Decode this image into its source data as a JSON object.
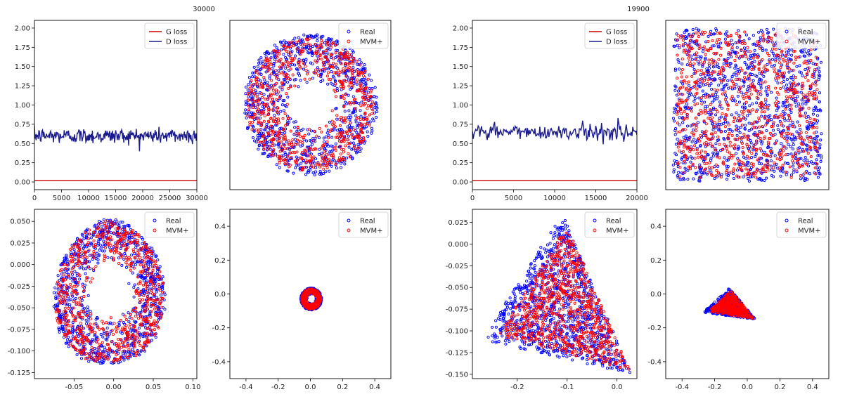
{
  "figure": {
    "colors": {
      "real": "#0000ff",
      "mvm": "#ff0000",
      "g_loss": "#cc0000",
      "d_loss": "#1a1a8c",
      "axes": "#000000"
    }
  },
  "chart_data": [
    {
      "id": "left-top-loss",
      "type": "line",
      "figure_title": "30000",
      "xlim": [
        0,
        30000
      ],
      "ylim": [
        -0.1,
        2.1
      ],
      "xticks": [
        0,
        5000,
        10000,
        15000,
        20000,
        25000,
        30000
      ],
      "yticks": [
        0.0,
        0.25,
        0.5,
        0.75,
        1.0,
        1.25,
        1.5,
        1.75,
        2.0
      ],
      "legend_position": "top-right",
      "show_xticks": true,
      "show_yticks": true,
      "series": [
        {
          "name": "G loss",
          "color": "#cc0000",
          "x": [
            0,
            30000
          ],
          "y": [
            0.02,
            0.02
          ]
        },
        {
          "name": "D loss",
          "color": "#1a1a8c",
          "mean": 0.6,
          "amplitude": 0.05,
          "points": 300
        }
      ]
    },
    {
      "id": "left-top-scatter",
      "type": "scatter",
      "xlim": [
        -1.2,
        1.2
      ],
      "ylim": [
        -1.2,
        1.2
      ],
      "show_xticks": false,
      "show_yticks": false,
      "legend_position": "top-right",
      "series": [
        {
          "name": "Real",
          "color": "#0000ff",
          "shape": "annulus",
          "cx": 0.0,
          "cy": 0.0,
          "r_inner": 0.3,
          "r_outer": 1.0,
          "count": 900
        },
        {
          "name": "MVM+",
          "color": "#ff0000",
          "shape": "annulus",
          "cx": 0.0,
          "cy": 0.0,
          "r_inner": 0.32,
          "r_outer": 0.95,
          "count": 700
        }
      ]
    },
    {
      "id": "left-bottom-scatter",
      "type": "scatter",
      "xlim": [
        -0.1,
        0.105
      ],
      "ylim": [
        -0.132,
        0.064
      ],
      "xticks": [
        -0.05,
        0.0,
        0.05,
        0.1
      ],
      "yticks": [
        0.05,
        0.025,
        0.0,
        -0.025,
        -0.05,
        -0.075,
        -0.1,
        -0.125
      ],
      "legend_position": "top-right",
      "show_xticks": true,
      "show_yticks": true,
      "series": [
        {
          "name": "Real",
          "color": "#0000ff",
          "shape": "warped-annulus",
          "cx": -0.005,
          "cy": -0.03,
          "sx": 0.07,
          "sy": 0.085,
          "r_inner": 0.35,
          "skew": 0.5,
          "count": 900
        },
        {
          "name": "MVM+",
          "color": "#ff0000",
          "shape": "warped-annulus",
          "cx": -0.005,
          "cy": -0.03,
          "sx": 0.068,
          "sy": 0.083,
          "r_inner": 0.37,
          "skew": 0.5,
          "count": 700
        }
      ]
    },
    {
      "id": "left-bottom-zoomed",
      "type": "scatter",
      "xlim": [
        -0.5,
        0.5
      ],
      "ylim": [
        -0.5,
        0.5
      ],
      "xticks": [
        -0.4,
        -0.2,
        0.0,
        0.2,
        0.4
      ],
      "yticks": [
        0.4,
        0.2,
        0.0,
        -0.2,
        -0.4
      ],
      "legend_position": "top-right",
      "show_xticks": true,
      "show_yticks": true,
      "series": [
        {
          "name": "Real",
          "color": "#0000ff",
          "shape": "annulus",
          "cx": 0.005,
          "cy": -0.03,
          "r_inner": 0.025,
          "r_outer": 0.065,
          "count": 500
        },
        {
          "name": "MVM+",
          "color": "#ff0000",
          "shape": "annulus",
          "cx": 0.005,
          "cy": -0.03,
          "r_inner": 0.027,
          "r_outer": 0.06,
          "count": 450
        }
      ]
    },
    {
      "id": "right-top-loss",
      "type": "line",
      "figure_title": "19900",
      "xlim": [
        0,
        20000
      ],
      "ylim": [
        -0.1,
        2.1
      ],
      "xticks": [
        0,
        5000,
        10000,
        15000,
        20000
      ],
      "yticks": [
        0.0,
        0.25,
        0.5,
        0.75,
        1.0,
        1.25,
        1.5,
        1.75,
        2.0
      ],
      "legend_position": "top-right",
      "show_xticks": true,
      "show_yticks": true,
      "series": [
        {
          "name": "G loss",
          "color": "#cc0000",
          "x": [
            0,
            20000
          ],
          "y": [
            0.02,
            0.02
          ]
        },
        {
          "name": "D loss",
          "color": "#1a1a8c",
          "mean": 0.65,
          "amplitude": 0.05,
          "points": 200
        }
      ]
    },
    {
      "id": "right-top-scatter",
      "type": "scatter",
      "xlim": [
        -1.1,
        1.1
      ],
      "ylim": [
        -1.1,
        1.1
      ],
      "show_xticks": false,
      "show_yticks": false,
      "legend_position": "top-right",
      "series": [
        {
          "name": "Real",
          "color": "#0000ff",
          "shape": "square",
          "x0": -1.0,
          "x1": 1.0,
          "y0": -1.0,
          "y1": 1.0,
          "count": 1100
        },
        {
          "name": "MVM+",
          "color": "#ff0000",
          "shape": "square",
          "x0": -0.95,
          "x1": 0.95,
          "y0": -0.95,
          "y1": 0.95,
          "count": 800
        }
      ]
    },
    {
      "id": "right-bottom-scatter",
      "type": "scatter",
      "xlim": [
        -0.29,
        0.04
      ],
      "ylim": [
        -0.155,
        0.04
      ],
      "xticks": [
        -0.2,
        -0.1,
        0.0
      ],
      "yticks": [
        0.025,
        0.0,
        -0.025,
        -0.05,
        -0.075,
        -0.1,
        -0.125,
        -0.15
      ],
      "legend_position": "top-right",
      "show_xticks": true,
      "show_yticks": true,
      "series": [
        {
          "name": "Real",
          "color": "#0000ff",
          "shape": "triangle",
          "vertices": [
            [
              -0.27,
              -0.11
            ],
            [
              -0.11,
              0.035
            ],
            [
              0.03,
              -0.15
            ]
          ],
          "count": 1000
        },
        {
          "name": "MVM+",
          "color": "#ff0000",
          "shape": "triangle",
          "vertices": [
            [
              -0.24,
              -0.105
            ],
            [
              -0.1,
              0.02
            ],
            [
              0.025,
              -0.145
            ]
          ],
          "count": 800
        }
      ]
    },
    {
      "id": "right-bottom-zoomed",
      "type": "scatter",
      "xlim": [
        -0.5,
        0.5
      ],
      "ylim": [
        -0.5,
        0.5
      ],
      "xticks": [
        -0.4,
        -0.2,
        0.0,
        0.2,
        0.4
      ],
      "yticks": [
        0.4,
        0.2,
        0.0,
        -0.2,
        -0.4
      ],
      "legend_position": "top-right",
      "show_xticks": true,
      "show_yticks": true,
      "series": [
        {
          "name": "Real",
          "color": "#0000ff",
          "shape": "triangle",
          "vertices": [
            [
              -0.27,
              -0.11
            ],
            [
              -0.11,
              0.035
            ],
            [
              0.05,
              -0.15
            ]
          ],
          "count": 500
        },
        {
          "name": "MVM+",
          "color": "#ff0000",
          "shape": "triangle",
          "vertices": [
            [
              -0.24,
              -0.105
            ],
            [
              -0.1,
              0.02
            ],
            [
              0.04,
              -0.145
            ]
          ],
          "count": 450
        }
      ]
    }
  ]
}
